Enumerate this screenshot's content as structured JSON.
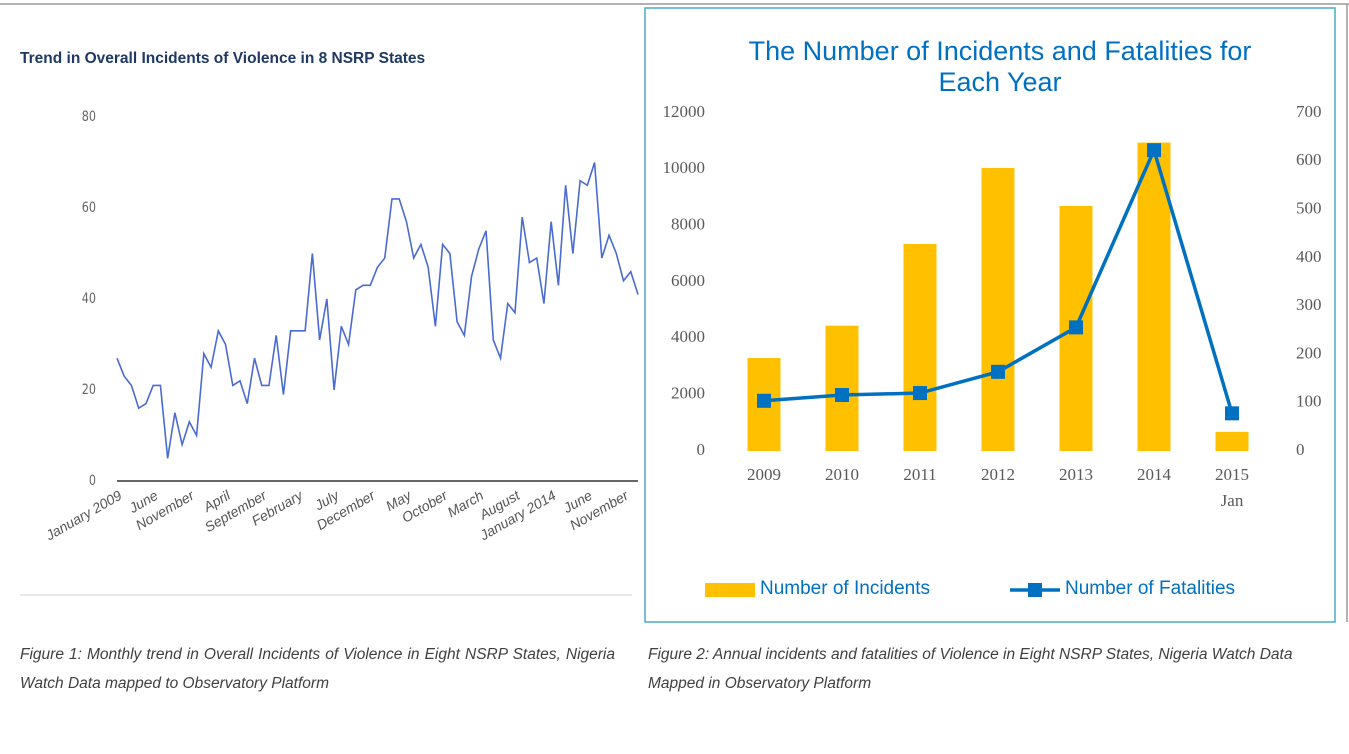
{
  "chart_data": [
    {
      "type": "line",
      "title": "Trend in Overall Incidents of Violence in 8 NSRP States",
      "categories": [
        "January 2009",
        null,
        null,
        null,
        null,
        "June",
        null,
        null,
        null,
        null,
        "November",
        null,
        null,
        null,
        null,
        "April",
        null,
        null,
        null,
        null,
        "September",
        null,
        null,
        null,
        null,
        "February",
        null,
        null,
        null,
        null,
        "July",
        null,
        null,
        null,
        null,
        "December",
        null,
        null,
        null,
        null,
        "May",
        null,
        null,
        null,
        null,
        "October",
        null,
        null,
        null,
        null,
        "March",
        null,
        null,
        null,
        null,
        "August",
        null,
        null,
        null,
        null,
        "January 2014",
        null,
        null,
        null,
        null,
        "June",
        null,
        null,
        null,
        null,
        "November",
        null,
        null
      ],
      "values": [
        27,
        23,
        21,
        16,
        17,
        21,
        21,
        5,
        15,
        8,
        13,
        10,
        28,
        25,
        33,
        30,
        21,
        22,
        17,
        27,
        21,
        21,
        32,
        19,
        33,
        33,
        33,
        50,
        31,
        40,
        20,
        34,
        30,
        42,
        43,
        43,
        47,
        49,
        62,
        62,
        57,
        49,
        52,
        47,
        34,
        52,
        50,
        35,
        32,
        45,
        51,
        55,
        31,
        27,
        39,
        37,
        58,
        48,
        49,
        39,
        57,
        43,
        65,
        50,
        66,
        65,
        70,
        49,
        54,
        50,
        44,
        46,
        41
      ],
      "color": "#4a6bd0",
      "ylim": [
        0,
        80
      ],
      "yticks": [
        0,
        20,
        40,
        60,
        80
      ],
      "grid": false
    },
    {
      "type": "bar",
      "title": "The Number of Incidents and Fatalities for Each Year",
      "categories": [
        "2009",
        "2010",
        "2011",
        "2012",
        "2013",
        "2014",
        "2015 Jan"
      ],
      "series": [
        {
          "name": "Number of Incidents",
          "color": "#ffc000",
          "values": [
            3300,
            4450,
            7350,
            10050,
            8700,
            10950,
            680
          ]
        },
        {
          "name": "Number of Fatalities",
          "color": "#0070c0",
          "axis": "y2",
          "values": [
            104,
            116,
            120,
            164,
            256,
            623,
            78
          ]
        }
      ],
      "ylim": [
        0,
        12000
      ],
      "yticks": [
        0,
        2000,
        4000,
        6000,
        8000,
        10000,
        12000
      ],
      "y2lim": [
        0,
        700
      ],
      "y2ticks": [
        0,
        100,
        200,
        300,
        400,
        500,
        600,
        700
      ],
      "grid": false,
      "legend": "bottom"
    }
  ],
  "captions": [
    "Figure 1: Monthly trend in Overall Incidents of Violence in Eight NSRP States, Nigeria Watch Data mapped to Observatory Platform",
    "Figure 2: Annual incidents and fatalities of Violence in Eight NSRP States, Nigeria Watch Data Mapped in Observatory Platform"
  ]
}
